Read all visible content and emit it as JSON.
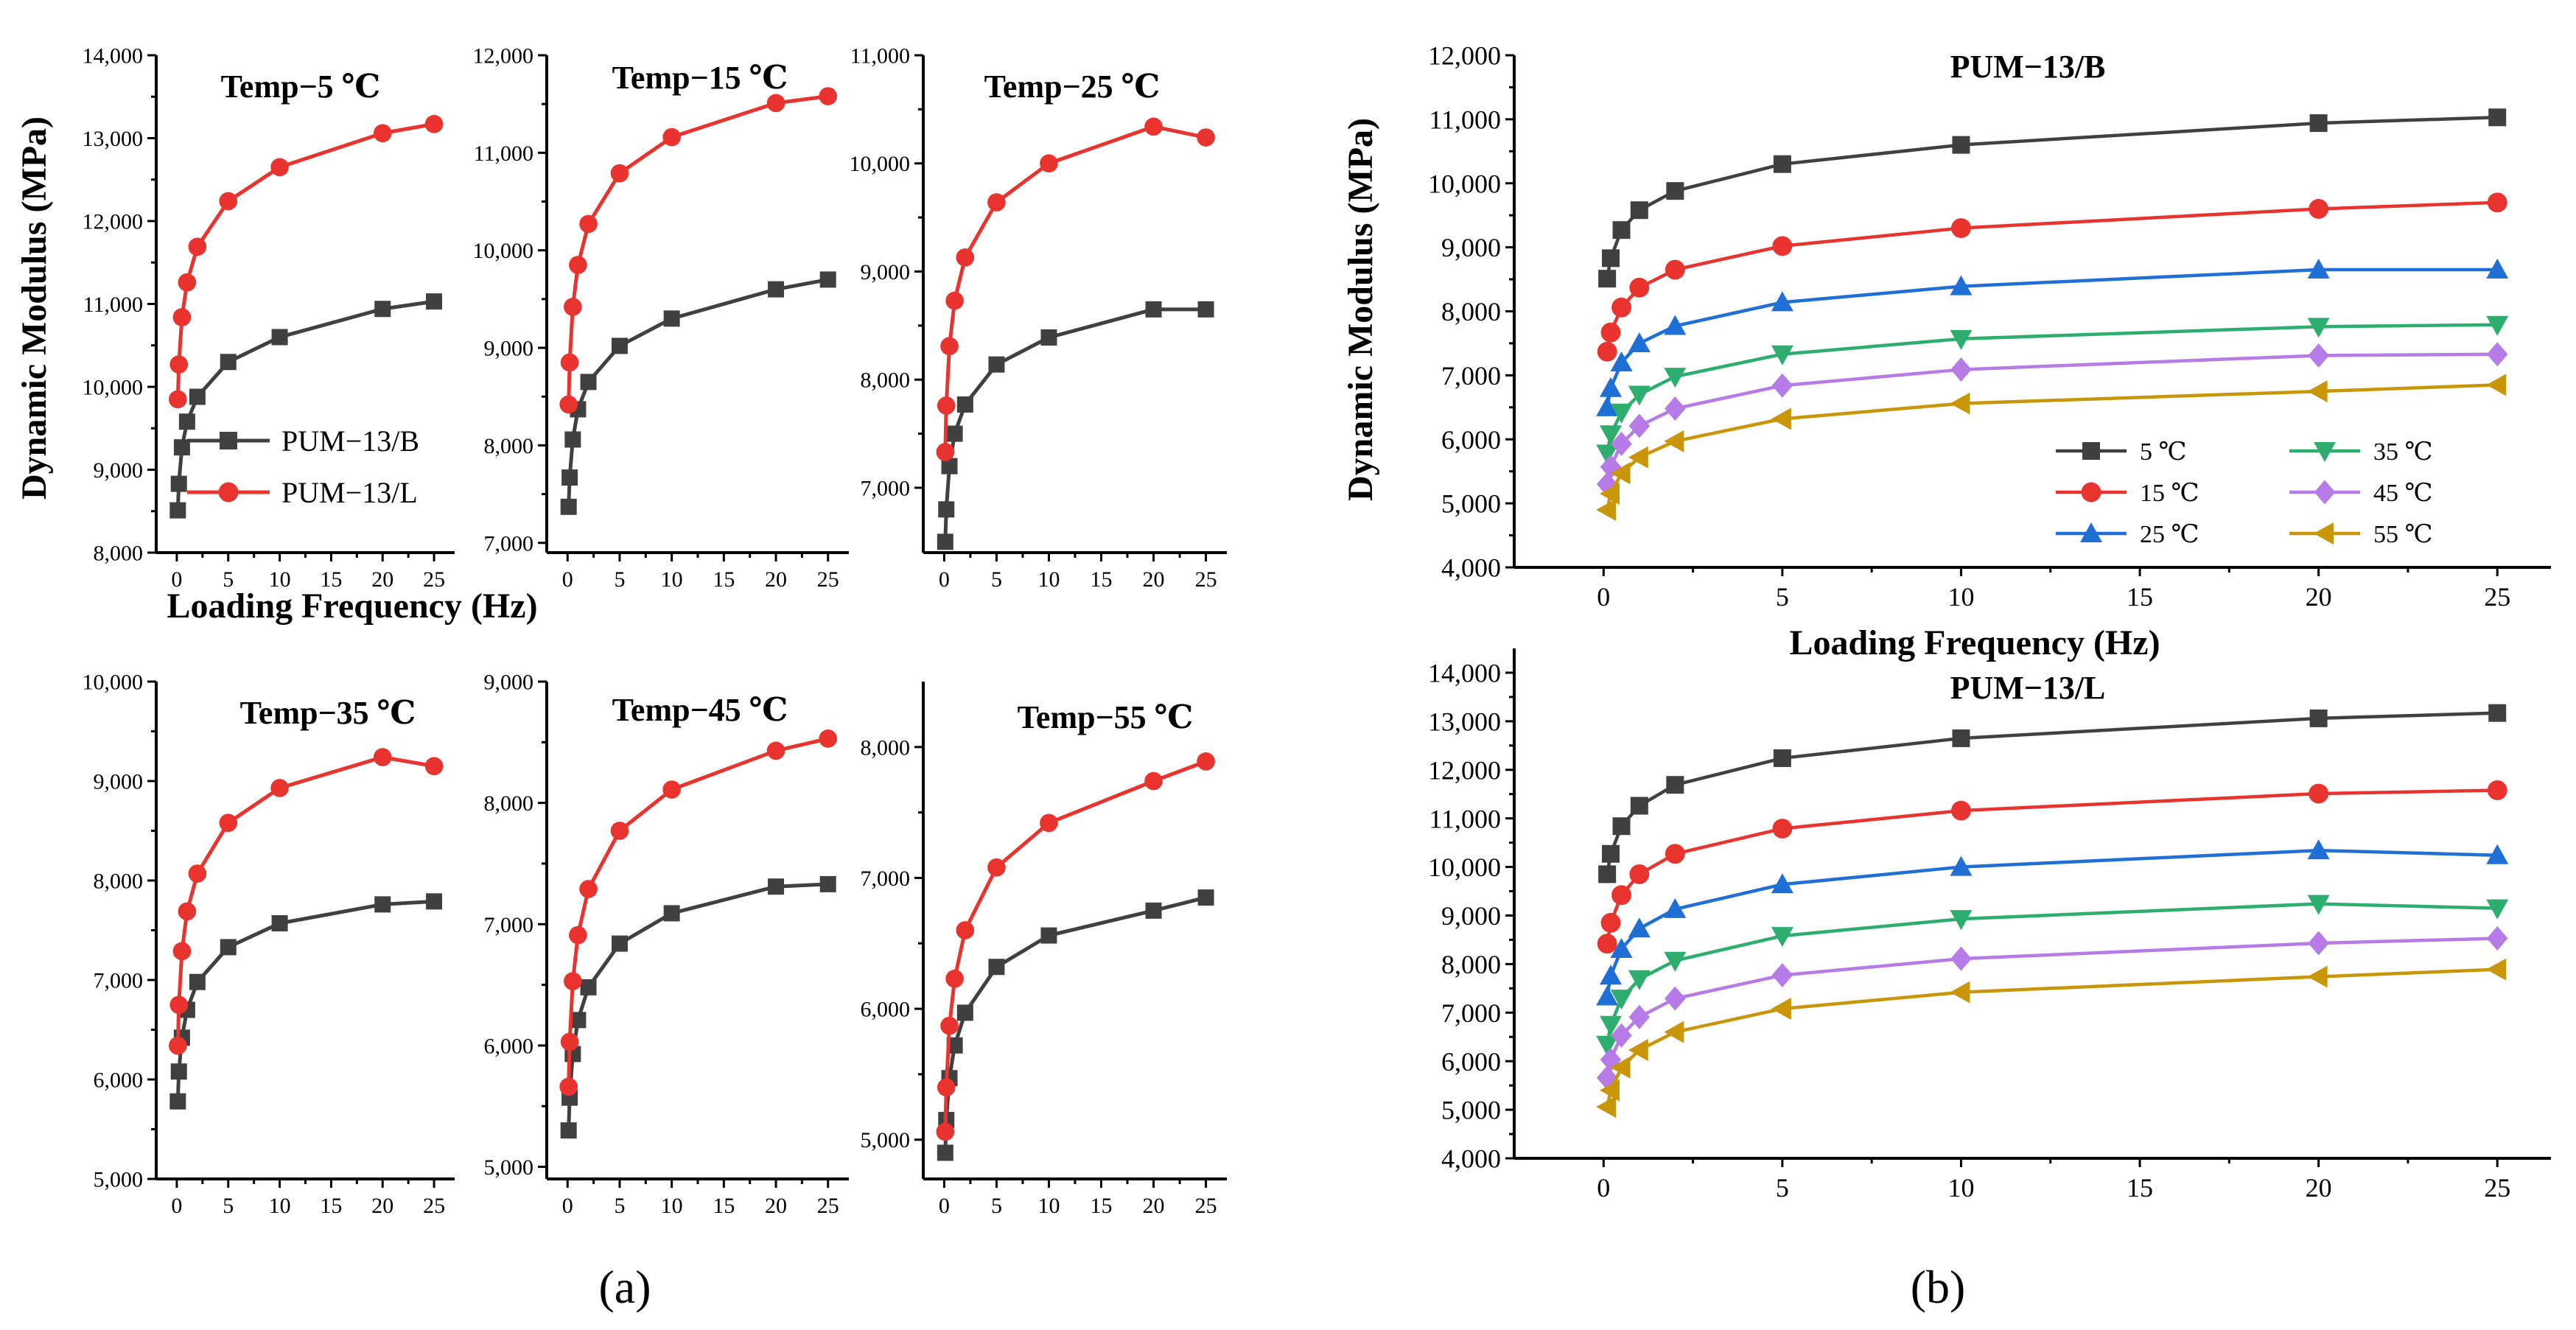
{
  "figure_labels": {
    "a": "(a)",
    "b": "(b)"
  },
  "colors": {
    "B": "#404040",
    "L": "#e8332e",
    "5": "#404040",
    "15": "#e8332e",
    "25": "#1f6fd6",
    "35": "#2eae6e",
    "45": "#b67be6",
    "55": "#c9960a"
  },
  "chart_data": [
    {
      "type": "line",
      "id": "a1",
      "panel": "a",
      "title": "Temp−5 ℃",
      "xlabel": "Loading Frequency (Hz)",
      "ylabel": "Dynamic Modulus (MPa)",
      "x": [
        0.1,
        0.2,
        0.5,
        1,
        2,
        5,
        10,
        20,
        25
      ],
      "xlim": [
        -2,
        27
      ],
      "ylim": [
        8000,
        14000
      ],
      "xticks": [
        0,
        5,
        10,
        15,
        20,
        25
      ],
      "yticks": [
        8000,
        9000,
        10000,
        11000,
        12000,
        13000,
        14000
      ],
      "ytick_labels": [
        "8,000",
        "9,000",
        "10,000",
        "11,000",
        "12,000",
        "13,000",
        "14,000"
      ],
      "series": [
        {
          "name": "PUM−13/B",
          "color_key": "B",
          "marker": "square",
          "values": [
            8510,
            8830,
            9270,
            9580,
            9880,
            10300,
            10600,
            10940,
            11030
          ]
        },
        {
          "name": "PUM−13/L",
          "color_key": "L",
          "marker": "circle",
          "values": [
            9850,
            10270,
            10840,
            11260,
            11690,
            12240,
            12650,
            13060,
            13170
          ]
        }
      ],
      "legend": "lower-right"
    },
    {
      "type": "line",
      "id": "a2",
      "panel": "a",
      "title": "Temp−15 ℃",
      "x": [
        0.1,
        0.2,
        0.5,
        1,
        2,
        5,
        10,
        20,
        25
      ],
      "xlim": [
        -2,
        27
      ],
      "ylim": [
        6900,
        12000
      ],
      "xticks": [
        0,
        5,
        10,
        15,
        20,
        25
      ],
      "yticks": [
        7000,
        8000,
        9000,
        10000,
        11000,
        12000
      ],
      "ytick_labels": [
        "7,000",
        "8,000",
        "9,000",
        "10,000",
        "11,000",
        "12,000"
      ],
      "series": [
        {
          "name": "PUM−13/B",
          "color_key": "B",
          "marker": "square",
          "values": [
            7370,
            7670,
            8060,
            8370,
            8650,
            9020,
            9300,
            9600,
            9700
          ]
        },
        {
          "name": "PUM−13/L",
          "color_key": "L",
          "marker": "circle",
          "values": [
            8420,
            8850,
            9420,
            9850,
            10270,
            10790,
            11160,
            11510,
            11580
          ]
        }
      ]
    },
    {
      "type": "line",
      "id": "a3",
      "panel": "a",
      "title": "Temp−25 ℃",
      "x": [
        0.1,
        0.2,
        0.5,
        1,
        2,
        5,
        10,
        20,
        25
      ],
      "xlim": [
        -2,
        27
      ],
      "ylim": [
        6400,
        11000
      ],
      "xticks": [
        0,
        5,
        10,
        15,
        20,
        25
      ],
      "yticks": [
        7000,
        8000,
        9000,
        10000,
        11000
      ],
      "ytick_labels": [
        "7,000",
        "8,000",
        "9,000",
        "10,000",
        "11,000"
      ],
      "series": [
        {
          "name": "PUM−13/B",
          "color_key": "B",
          "marker": "square",
          "values": [
            6500,
            6800,
            7200,
            7500,
            7770,
            8140,
            8390,
            8650,
            8650
          ]
        },
        {
          "name": "PUM−13/L",
          "color_key": "L",
          "marker": "circle",
          "values": [
            7330,
            7760,
            8310,
            8730,
            9130,
            9640,
            10000,
            10340,
            10240
          ]
        }
      ]
    },
    {
      "type": "line",
      "id": "a4",
      "panel": "a",
      "title": "Temp−35 ℃",
      "x": [
        0.1,
        0.2,
        0.5,
        1,
        2,
        5,
        10,
        20,
        25
      ],
      "xlim": [
        -2,
        27
      ],
      "ylim": [
        5000,
        10000
      ],
      "xticks": [
        0,
        5,
        10,
        15,
        20,
        25
      ],
      "yticks": [
        5000,
        6000,
        7000,
        8000,
        9000,
        10000
      ],
      "ytick_labels": [
        "5,000",
        "6,000",
        "7,000",
        "8,000",
        "9,000",
        "10,000"
      ],
      "series": [
        {
          "name": "PUM−13/B",
          "color_key": "B",
          "marker": "square",
          "values": [
            5780,
            6080,
            6420,
            6700,
            6980,
            7330,
            7570,
            7760,
            7790
          ]
        },
        {
          "name": "PUM−13/L",
          "color_key": "L",
          "marker": "circle",
          "values": [
            6340,
            6750,
            7290,
            7690,
            8070,
            8580,
            8930,
            9240,
            9150
          ]
        }
      ]
    },
    {
      "type": "line",
      "id": "a5",
      "panel": "a",
      "title": "Temp−45 ℃",
      "x": [
        0.1,
        0.2,
        0.5,
        1,
        2,
        5,
        10,
        20,
        25
      ],
      "xlim": [
        -2,
        27
      ],
      "ylim": [
        4900,
        9000
      ],
      "xticks": [
        0,
        5,
        10,
        15,
        20,
        25
      ],
      "yticks": [
        5000,
        6000,
        7000,
        8000,
        9000
      ],
      "ytick_labels": [
        "5,000",
        "6,000",
        "7,000",
        "8,000",
        "9,000"
      ],
      "series": [
        {
          "name": "PUM−13/B",
          "color_key": "B",
          "marker": "square",
          "values": [
            5300,
            5570,
            5930,
            6210,
            6480,
            6840,
            7090,
            7310,
            7330
          ]
        },
        {
          "name": "PUM−13/L",
          "color_key": "L",
          "marker": "circle",
          "values": [
            5660,
            6030,
            6530,
            6910,
            7290,
            7770,
            8110,
            8430,
            8530
          ]
        }
      ]
    },
    {
      "type": "line",
      "id": "a6",
      "panel": "a",
      "title": "Temp−55 ℃",
      "x": [
        0.1,
        0.2,
        0.5,
        1,
        2,
        5,
        10,
        20,
        25
      ],
      "xlim": [
        -2,
        27
      ],
      "ylim": [
        4700,
        8500
      ],
      "xticks": [
        0,
        5,
        10,
        15,
        20,
        25
      ],
      "yticks": [
        5000,
        6000,
        7000,
        8000
      ],
      "ytick_labels": [
        "5,000",
        "6,000",
        "7,000",
        "8,000"
      ],
      "series": [
        {
          "name": "PUM−13/B",
          "color_key": "B",
          "marker": "square",
          "values": [
            4900,
            5150,
            5470,
            5720,
            5970,
            6320,
            6560,
            6750,
            6850
          ]
        },
        {
          "name": "PUM−13/L",
          "color_key": "L",
          "marker": "circle",
          "values": [
            5060,
            5400,
            5870,
            6230,
            6600,
            7080,
            7420,
            7740,
            7890
          ]
        }
      ]
    },
    {
      "type": "line",
      "id": "b1",
      "panel": "b",
      "title": "PUM−13/B",
      "xlabel": "Loading Frequency (Hz)",
      "ylabel": "Dynamic Modulus (MPa)",
      "x": [
        0.1,
        0.2,
        0.5,
        1,
        2,
        5,
        10,
        20,
        25
      ],
      "xlim": [
        -2.5,
        26.5
      ],
      "ylim": [
        4000,
        12000
      ],
      "xticks": [
        0,
        5,
        10,
        15,
        20,
        25
      ],
      "yticks": [
        4000,
        5000,
        6000,
        7000,
        8000,
        9000,
        10000,
        11000,
        12000
      ],
      "ytick_labels": [
        "4,000",
        "5,000",
        "6,000",
        "7,000",
        "8,000",
        "9,000",
        "10,000",
        "11,000",
        "12,000"
      ],
      "series": [
        {
          "name": "5 ℃",
          "color_key": "5",
          "marker": "square",
          "values": [
            8510,
            8830,
            9270,
            9580,
            9880,
            10300,
            10600,
            10940,
            11030
          ]
        },
        {
          "name": "15 ℃",
          "color_key": "15",
          "marker": "circle",
          "values": [
            7370,
            7670,
            8060,
            8370,
            8650,
            9020,
            9300,
            9600,
            9700
          ]
        },
        {
          "name": "25 ℃",
          "color_key": "25",
          "marker": "triangle-up",
          "values": [
            6500,
            6800,
            7200,
            7500,
            7770,
            8140,
            8390,
            8650,
            8650
          ]
        },
        {
          "name": "35 ℃",
          "color_key": "35",
          "marker": "triangle-down",
          "values": [
            5780,
            6080,
            6420,
            6700,
            6980,
            7330,
            7570,
            7760,
            7790
          ]
        },
        {
          "name": "45 ℃",
          "color_key": "45",
          "marker": "diamond",
          "values": [
            5300,
            5570,
            5930,
            6210,
            6480,
            6840,
            7090,
            7310,
            7330
          ]
        },
        {
          "name": "55 ℃",
          "color_key": "55",
          "marker": "triangle-left",
          "values": [
            4900,
            5150,
            5470,
            5720,
            5970,
            6320,
            6560,
            6750,
            6850
          ]
        }
      ],
      "legend": "lower-right"
    },
    {
      "type": "line",
      "id": "b2",
      "panel": "b",
      "title": "PUM−13/L",
      "x": [
        0.1,
        0.2,
        0.5,
        1,
        2,
        5,
        10,
        20,
        25
      ],
      "xlim": [
        -2.5,
        26.5
      ],
      "ylim": [
        4000,
        14500
      ],
      "xticks": [
        0,
        5,
        10,
        15,
        20,
        25
      ],
      "yticks": [
        4000,
        5000,
        6000,
        7000,
        8000,
        9000,
        10000,
        11000,
        12000,
        13000,
        14000
      ],
      "ytick_labels": [
        "4,000",
        "5,000",
        "6,000",
        "7,000",
        "8,000",
        "9,000",
        "10,000",
        "11,000",
        "12,000",
        "13,000",
        "14,000"
      ],
      "series": [
        {
          "name": "5 ℃",
          "color_key": "5",
          "marker": "square",
          "values": [
            9850,
            10270,
            10840,
            11260,
            11690,
            12240,
            12650,
            13060,
            13170
          ]
        },
        {
          "name": "15 ℃",
          "color_key": "15",
          "marker": "circle",
          "values": [
            8420,
            8850,
            9420,
            9850,
            10270,
            10790,
            11160,
            11510,
            11580
          ]
        },
        {
          "name": "25 ℃",
          "color_key": "25",
          "marker": "triangle-up",
          "values": [
            7330,
            7760,
            8310,
            8730,
            9130,
            9640,
            10000,
            10340,
            10240
          ]
        },
        {
          "name": "35 ℃",
          "color_key": "35",
          "marker": "triangle-down",
          "values": [
            6340,
            6750,
            7290,
            7690,
            8070,
            8580,
            8930,
            9240,
            9150
          ]
        },
        {
          "name": "45 ℃",
          "color_key": "45",
          "marker": "diamond",
          "values": [
            5660,
            6030,
            6530,
            6910,
            7290,
            7770,
            8110,
            8430,
            8530
          ]
        },
        {
          "name": "55 ℃",
          "color_key": "55",
          "marker": "triangle-left",
          "values": [
            5060,
            5400,
            5870,
            6230,
            6600,
            7080,
            7420,
            7740,
            7890
          ]
        }
      ]
    }
  ]
}
